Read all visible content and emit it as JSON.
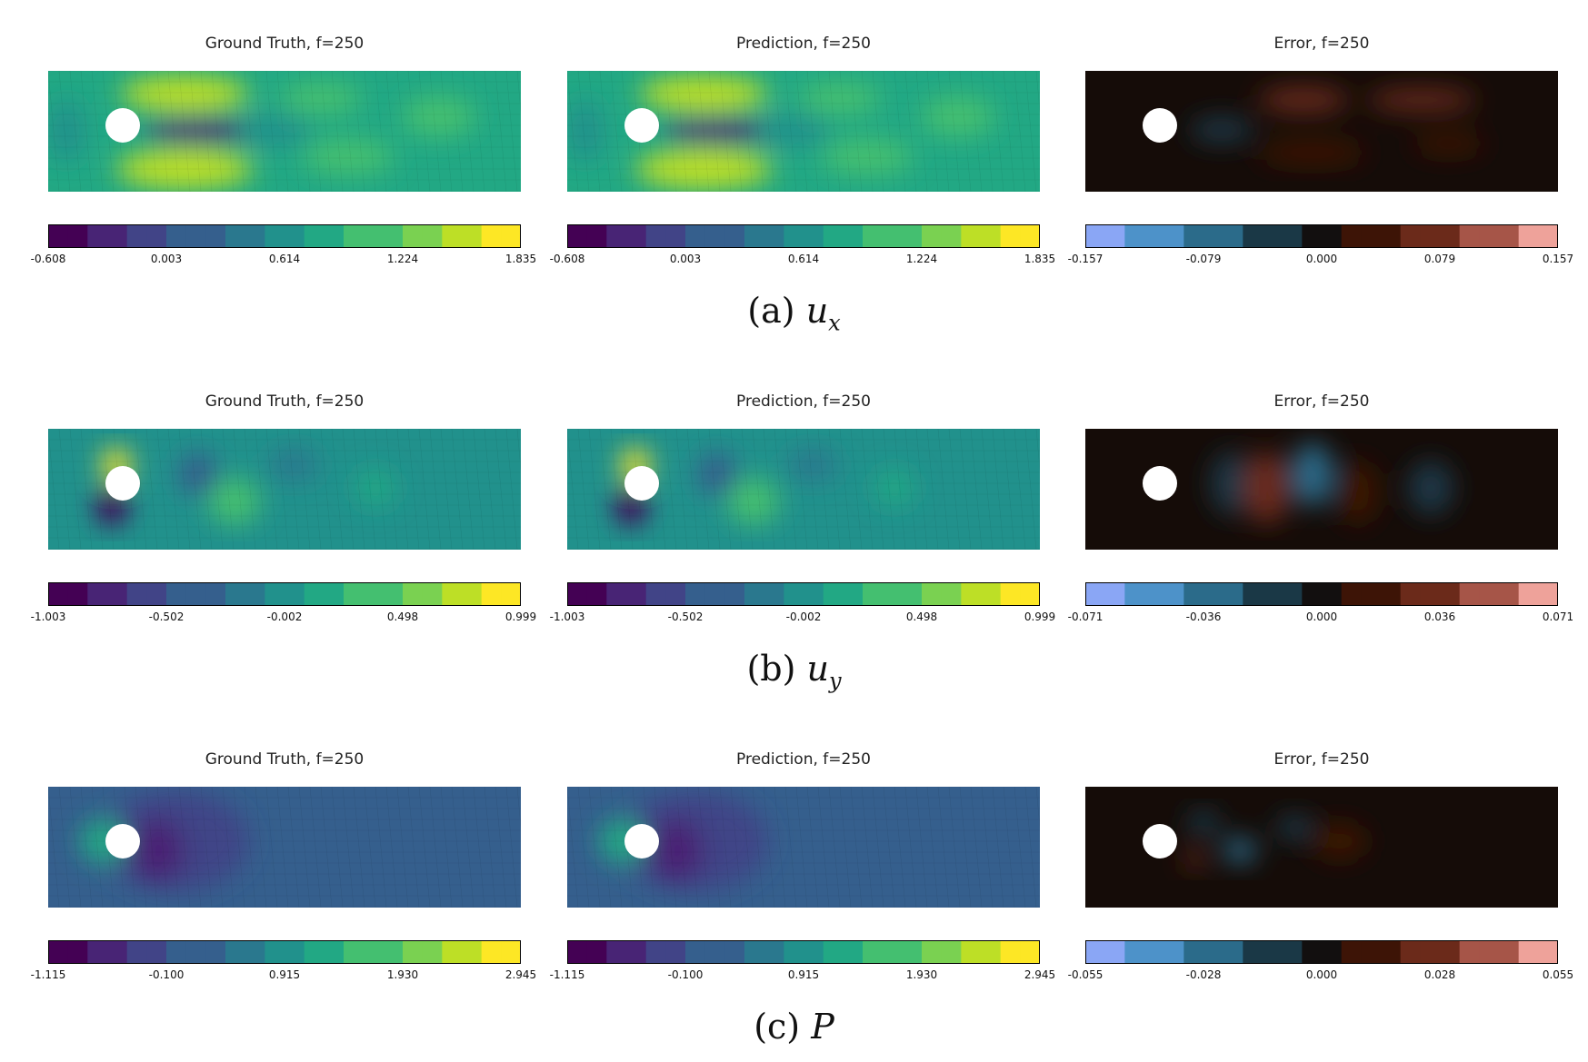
{
  "rows": [
    {
      "panels": [
        {
          "title": "Ground Truth, f=250",
          "type": "field",
          "ticks": [
            "-0.608",
            "0.003",
            "0.614",
            "1.224",
            "1.835"
          ]
        },
        {
          "title": "Prediction, f=250",
          "type": "field",
          "ticks": [
            "-0.608",
            "0.003",
            "0.614",
            "1.224",
            "1.835"
          ]
        },
        {
          "title": "Error, f=250",
          "type": "error",
          "ticks": [
            "-0.157",
            "-0.079",
            "0.000",
            "0.079",
            "0.157"
          ]
        }
      ],
      "caption_prefix": "(a)",
      "caption_var": "u",
      "caption_sub": "x"
    },
    {
      "panels": [
        {
          "title": "Ground Truth, f=250",
          "type": "field",
          "ticks": [
            "-1.003",
            "-0.502",
            "-0.002",
            "0.498",
            "0.999"
          ]
        },
        {
          "title": "Prediction, f=250",
          "type": "field",
          "ticks": [
            "-1.003",
            "-0.502",
            "-0.002",
            "0.498",
            "0.999"
          ]
        },
        {
          "title": "Error, f=250",
          "type": "error",
          "ticks": [
            "-0.071",
            "-0.036",
            "0.000",
            "0.036",
            "0.071"
          ]
        }
      ],
      "caption_prefix": "(b)",
      "caption_var": "u",
      "caption_sub": "y"
    },
    {
      "panels": [
        {
          "title": "Ground Truth, f=250",
          "type": "field",
          "ticks": [
            "-1.115",
            "-0.100",
            "0.915",
            "1.930",
            "2.945"
          ]
        },
        {
          "title": "Prediction, f=250",
          "type": "field",
          "ticks": [
            "-1.115",
            "-0.100",
            "0.915",
            "1.930",
            "2.945"
          ]
        },
        {
          "title": "Error, f=250",
          "type": "error",
          "ticks": [
            "-0.055",
            "-0.028",
            "0.000",
            "0.028",
            "0.055"
          ]
        }
      ],
      "caption_prefix": "(c)",
      "caption_var": "P",
      "caption_sub": ""
    }
  ],
  "colors": {
    "viridis": [
      "#440154",
      "#482475",
      "#414487",
      "#355f8d",
      "#2a788e",
      "#21918c",
      "#22a884",
      "#44bf70",
      "#7ad151",
      "#bddf26",
      "#fde725"
    ],
    "error": [
      "#8aa6f5",
      "#4d92c9",
      "#2b6b8a",
      "#1a3846",
      "#120f0f",
      "#3d1406",
      "#6b2a1a",
      "#a65548",
      "#eea29a"
    ],
    "background_error": "#150c08"
  }
}
